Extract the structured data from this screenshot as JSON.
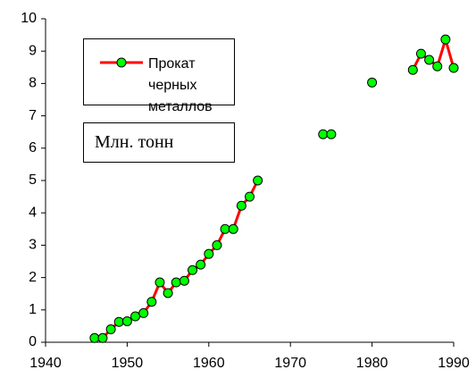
{
  "chart_data": {
    "type": "line",
    "x": [
      1946,
      1947,
      1948,
      1949,
      1950,
      1951,
      1952,
      1953,
      1954,
      1955,
      1956,
      1957,
      1958,
      1959,
      1960,
      1961,
      1962,
      1963,
      1964,
      1965,
      1966,
      1967,
      1974,
      1975,
      1976,
      1980,
      1981,
      1985,
      1986,
      1987,
      1988,
      1989,
      1990
    ],
    "series": [
      {
        "name": "Прокат черных металлов",
        "color": "#ff0000",
        "marker_color": "#00ff00",
        "values": [
          0.13,
          0.13,
          0.4,
          0.63,
          0.65,
          0.8,
          0.9,
          1.25,
          1.85,
          1.52,
          1.85,
          1.9,
          2.23,
          2.4,
          2.73,
          3.0,
          3.5,
          3.5,
          4.22,
          4.5,
          5.0,
          null,
          6.43,
          6.43,
          null,
          8.03,
          null,
          8.42,
          8.92,
          8.73,
          8.53,
          9.36,
          8.48
        ]
      }
    ],
    "annotation": "Млн. тонн",
    "xlim": [
      1940,
      1990
    ],
    "xticks": [
      1940,
      1950,
      1960,
      1970,
      1980,
      1990
    ],
    "ylim": [
      0,
      10
    ],
    "yticks": [
      0,
      1,
      2,
      3,
      4,
      5,
      6,
      7,
      8,
      9,
      10
    ],
    "grid": false
  }
}
